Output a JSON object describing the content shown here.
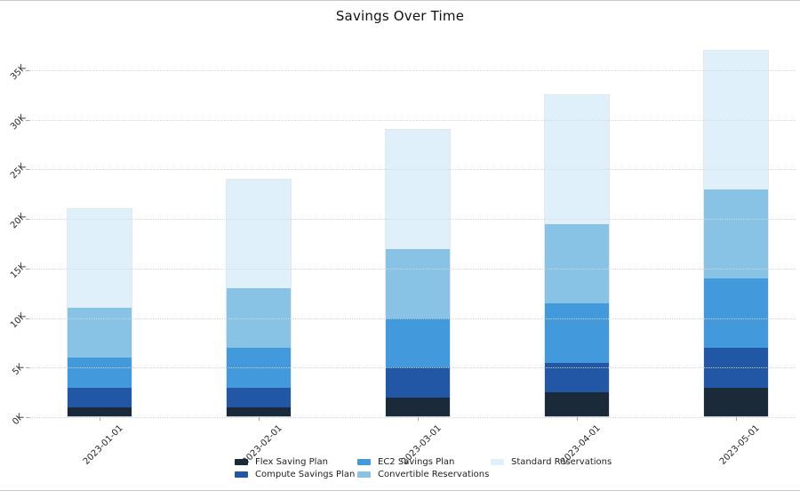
{
  "window": {
    "background": "#ffffff",
    "border_color": "#c8c8c8"
  },
  "chart_data": {
    "type": "bar",
    "stacked": true,
    "title": "Savings Over Time",
    "xlabel": "",
    "ylabel": "",
    "categories": [
      "2023-01-01",
      "2023-02-01",
      "2023-03-01",
      "2023-04-01",
      "2023-05-01"
    ],
    "series": [
      {
        "name": "Flex Saving Plan",
        "color": "#1b2a39",
        "values": [
          1000,
          1000,
          2000,
          2500,
          3000
        ]
      },
      {
        "name": "Compute Savings Plan",
        "color": "#2257a5",
        "values": [
          2000,
          2000,
          3000,
          3000,
          4000
        ]
      },
      {
        "name": "EC2 Savings Plan",
        "color": "#429add",
        "values": [
          3000,
          4000,
          5000,
          6000,
          7000
        ]
      },
      {
        "name": "Convertible Reservations",
        "color": "#88c3e6",
        "values": [
          5000,
          6000,
          7000,
          8000,
          9000
        ]
      },
      {
        "name": "Standard Reservations",
        "color": "#dff0fb",
        "values": [
          10000,
          11000,
          12000,
          13000,
          14000
        ]
      }
    ],
    "stack_totals": [
      21000,
      24000,
      29000,
      32500,
      37000
    ],
    "y_axis": {
      "tick_labels": [
        "0K",
        "5K",
        "10K",
        "15K",
        "20K",
        "25K",
        "30K",
        "35K"
      ],
      "tick_step": 5000,
      "min": 0,
      "max": 37500,
      "grid": "dotted",
      "tick_rotation": 45
    },
    "x_axis": {
      "tick_rotation": 45
    },
    "legend": {
      "position": "bottom",
      "rows": 2,
      "columns": [
        [
          "Flex Saving Plan",
          "Compute Savings Plan"
        ],
        [
          "EC2 Savings Plan",
          "Convertible Reservations"
        ],
        [
          "Standard Reservations"
        ]
      ]
    }
  }
}
